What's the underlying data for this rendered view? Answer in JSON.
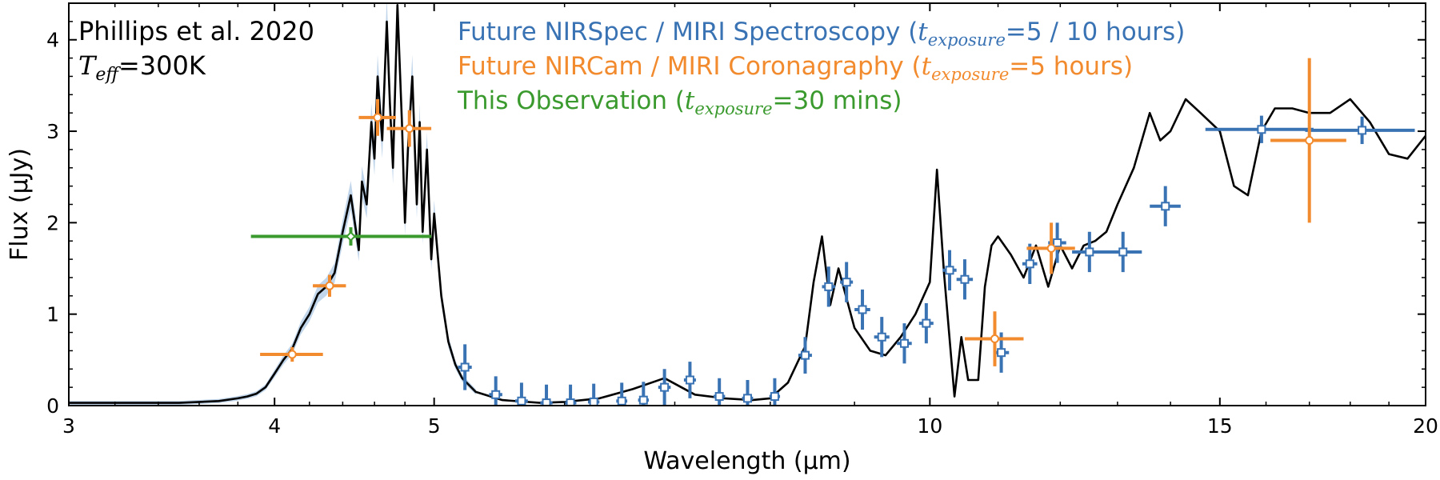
{
  "chart_data": {
    "type": "line",
    "xlabel": "Wavelength (μm)",
    "ylabel": "Flux (μJy)",
    "xscale": "log",
    "xlim": [
      3,
      20
    ],
    "ylim": [
      0,
      4.4
    ],
    "xticks": [
      3,
      4,
      5,
      10,
      15,
      20
    ],
    "yticks": [
      0,
      1,
      2,
      3,
      4
    ],
    "annotation": {
      "ref": "Phillips et al. 2020",
      "teff_symbol": "T",
      "teff_sub": "eff",
      "teff_value": "=300K"
    },
    "legend": [
      {
        "prefix": "Future NIRSpec / MIRI Spectroscopy (",
        "t": "t",
        "sub": "exposure",
        "suffix": "=5 / 10 hours)",
        "color": "#3a73b4"
      },
      {
        "prefix": "Future NIRCam / MIRI Coronagraphy (",
        "t": "t",
        "sub": "exposure",
        "suffix": "=5 hours)",
        "color": "#f28a2e"
      },
      {
        "prefix": "This Observation (",
        "t": "t",
        "sub": "exposure",
        "suffix": "=30 mins)",
        "color": "#3a9a2e"
      }
    ],
    "model_spectrum": {
      "name": "Phillips et al. 2020 model",
      "color": "#000000",
      "x": [
        3.0,
        3.3,
        3.5,
        3.7,
        3.8,
        3.85,
        3.9,
        3.95,
        4.0,
        4.05,
        4.1,
        4.15,
        4.2,
        4.25,
        4.3,
        4.35,
        4.4,
        4.45,
        4.5,
        4.52,
        4.55,
        4.58,
        4.6,
        4.62,
        4.65,
        4.68,
        4.7,
        4.72,
        4.75,
        4.78,
        4.8,
        4.82,
        4.85,
        4.88,
        4.9,
        4.92,
        4.95,
        4.98,
        5.0,
        5.05,
        5.1,
        5.15,
        5.2,
        5.3,
        5.5,
        5.8,
        6.0,
        6.3,
        6.6,
        6.9,
        7.2,
        7.5,
        7.8,
        8.0,
        8.2,
        8.4,
        8.5,
        8.6,
        8.7,
        8.8,
        9.0,
        9.2,
        9.4,
        9.6,
        9.8,
        10.0,
        10.1,
        10.2,
        10.35,
        10.45,
        10.55,
        10.7,
        10.8,
        10.9,
        11.0,
        11.2,
        11.4,
        11.6,
        11.8,
        12.0,
        12.2,
        12.4,
        12.6,
        12.8,
        13.0,
        13.3,
        13.6,
        13.8,
        14.0,
        14.3,
        14.6,
        15.0,
        15.3,
        15.6,
        15.9,
        16.2,
        16.6,
        17.0,
        17.5,
        18.0,
        18.5,
        19.0,
        19.5,
        20.0
      ],
      "y": [
        0.03,
        0.03,
        0.03,
        0.05,
        0.08,
        0.1,
        0.13,
        0.2,
        0.35,
        0.5,
        0.62,
        0.85,
        1.0,
        1.22,
        1.3,
        1.45,
        1.9,
        2.3,
        1.7,
        2.45,
        2.2,
        3.1,
        2.7,
        3.6,
        2.9,
        4.2,
        3.3,
        2.6,
        4.38,
        3.1,
        2.0,
        2.8,
        3.6,
        2.2,
        3.1,
        1.9,
        2.8,
        1.6,
        2.1,
        1.2,
        0.7,
        0.45,
        0.3,
        0.15,
        0.06,
        0.03,
        0.04,
        0.08,
        0.18,
        0.3,
        0.12,
        0.08,
        0.06,
        0.08,
        0.25,
        0.65,
        1.35,
        1.85,
        1.1,
        1.5,
        0.85,
        0.6,
        0.55,
        0.75,
        1.0,
        1.35,
        2.58,
        1.45,
        0.1,
        0.75,
        0.28,
        0.28,
        1.3,
        1.75,
        1.85,
        1.65,
        1.4,
        1.75,
        1.3,
        1.75,
        1.5,
        1.75,
        1.8,
        1.9,
        2.2,
        2.6,
        3.2,
        2.9,
        3.0,
        3.35,
        3.2,
        3.0,
        2.4,
        2.3,
        3.0,
        3.25,
        3.25,
        3.2,
        3.2,
        3.35,
        3.1,
        2.75,
        2.7,
        2.95
      ]
    },
    "series": [
      {
        "name": "Future NIRSpec / MIRI Spectroscopy",
        "color": "#3a73b4",
        "marker": "square",
        "points": [
          {
            "x": 5.22,
            "y": 0.42,
            "xerr": 0.05,
            "yerr": 0.25
          },
          {
            "x": 5.45,
            "y": 0.12,
            "xerr": 0.05,
            "yerr": 0.2
          },
          {
            "x": 5.65,
            "y": 0.05,
            "xerr": 0.05,
            "yerr": 0.2
          },
          {
            "x": 5.85,
            "y": 0.03,
            "xerr": 0.05,
            "yerr": 0.2
          },
          {
            "x": 6.05,
            "y": 0.03,
            "xerr": 0.05,
            "yerr": 0.2
          },
          {
            "x": 6.25,
            "y": 0.04,
            "xerr": 0.05,
            "yerr": 0.2
          },
          {
            "x": 6.5,
            "y": 0.05,
            "xerr": 0.05,
            "yerr": 0.2
          },
          {
            "x": 6.7,
            "y": 0.06,
            "xerr": 0.05,
            "yerr": 0.2
          },
          {
            "x": 6.9,
            "y": 0.2,
            "xerr": 0.06,
            "yerr": 0.2
          },
          {
            "x": 7.15,
            "y": 0.28,
            "xerr": 0.06,
            "yerr": 0.2
          },
          {
            "x": 7.45,
            "y": 0.1,
            "xerr": 0.06,
            "yerr": 0.2
          },
          {
            "x": 7.75,
            "y": 0.08,
            "xerr": 0.06,
            "yerr": 0.2
          },
          {
            "x": 8.05,
            "y": 0.1,
            "xerr": 0.06,
            "yerr": 0.2
          },
          {
            "x": 8.4,
            "y": 0.55,
            "xerr": 0.08,
            "yerr": 0.2
          },
          {
            "x": 8.68,
            "y": 1.3,
            "xerr": 0.08,
            "yerr": 0.22
          },
          {
            "x": 8.9,
            "y": 1.35,
            "xerr": 0.08,
            "yerr": 0.22
          },
          {
            "x": 9.1,
            "y": 1.05,
            "xerr": 0.1,
            "yerr": 0.22
          },
          {
            "x": 9.35,
            "y": 0.75,
            "xerr": 0.1,
            "yerr": 0.22
          },
          {
            "x": 9.65,
            "y": 0.68,
            "xerr": 0.1,
            "yerr": 0.22
          },
          {
            "x": 9.95,
            "y": 0.9,
            "xerr": 0.1,
            "yerr": 0.22
          },
          {
            "x": 10.28,
            "y": 1.48,
            "xerr": 0.1,
            "yerr": 0.22
          },
          {
            "x": 10.5,
            "y": 1.38,
            "xerr": 0.12,
            "yerr": 0.22
          },
          {
            "x": 11.05,
            "y": 0.58,
            "xerr": 0.12,
            "yerr": 0.22
          },
          {
            "x": 11.5,
            "y": 1.55,
            "xerr": 0.12,
            "yerr": 0.22
          },
          {
            "x": 11.95,
            "y": 1.78,
            "xerr": 0.15,
            "yerr": 0.22
          },
          {
            "x": 12.5,
            "y": 1.68,
            "xerr": 0.3,
            "yerr": 0.22
          },
          {
            "x": 13.1,
            "y": 1.68,
            "xerr": 0.35,
            "yerr": 0.22
          },
          {
            "x": 13.9,
            "y": 2.18,
            "xerr": 0.3,
            "yerr": 0.22
          },
          {
            "x": 15.9,
            "y": 3.02,
            "xerr": 1.2,
            "yerr": 0.15
          },
          {
            "x": 18.3,
            "y": 3.01,
            "xerr": 1.4,
            "yerr": 0.15
          }
        ]
      },
      {
        "name": "Future NIRCam / MIRI Coronagraphy",
        "color": "#f28a2e",
        "marker": "circle",
        "points": [
          {
            "x": 4.1,
            "y": 0.56,
            "xerr": 0.18,
            "yerr": 0.08
          },
          {
            "x": 4.32,
            "y": 1.31,
            "xerr": 0.1,
            "yerr": 0.12
          },
          {
            "x": 4.62,
            "y": 3.15,
            "xerr": 0.12,
            "yerr": 0.2
          },
          {
            "x": 4.83,
            "y": 3.03,
            "xerr": 0.15,
            "yerr": 0.2
          },
          {
            "x": 10.95,
            "y": 0.73,
            "xerr": 0.45,
            "yerr": 0.3
          },
          {
            "x": 11.85,
            "y": 1.72,
            "xerr": 0.4,
            "yerr": 0.28
          },
          {
            "x": 17.0,
            "y": 2.9,
            "xerr": 0.9,
            "yerr": 0.9
          }
        ]
      },
      {
        "name": "This Observation",
        "color": "#3a9a2e",
        "marker": "diamond",
        "points": [
          {
            "x": 4.45,
            "y": 1.85,
            "xerr_low": 0.58,
            "xerr_high": 0.53,
            "yerr": 0.1
          }
        ]
      }
    ]
  }
}
